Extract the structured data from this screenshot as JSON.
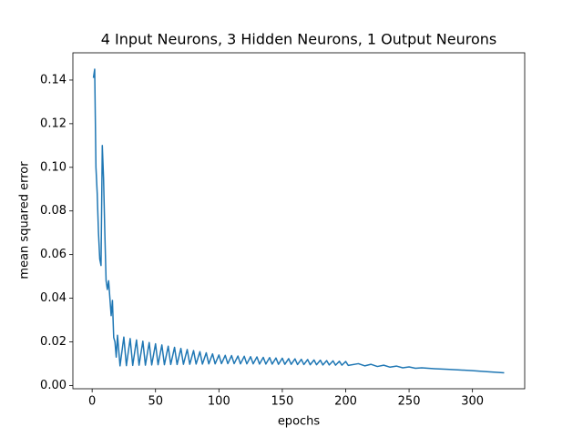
{
  "chart_data": {
    "type": "line",
    "title": "4 Input Neurons, 3 Hidden Neurons, 1 Output Neurons",
    "x_label": "epochs",
    "y_label": "mean squared error",
    "color": "#1f77b4",
    "x": [
      1,
      2,
      3,
      4,
      5,
      6,
      7,
      8,
      9,
      10,
      11,
      12,
      13,
      14,
      15,
      16,
      17,
      18,
      19,
      20,
      22,
      25,
      27,
      30,
      32,
      35,
      37,
      40,
      42,
      45,
      47,
      50,
      52,
      55,
      57,
      60,
      62,
      65,
      67,
      70,
      72,
      75,
      77,
      80,
      82,
      85,
      87,
      90,
      92,
      95,
      97,
      100,
      102,
      105,
      107,
      110,
      112,
      115,
      117,
      120,
      122,
      125,
      127,
      130,
      132,
      135,
      137,
      140,
      142,
      145,
      147,
      150,
      152,
      155,
      157,
      160,
      162,
      165,
      167,
      170,
      172,
      175,
      177,
      180,
      182,
      185,
      187,
      190,
      192,
      195,
      197,
      200,
      202,
      210,
      215,
      220,
      225,
      230,
      235,
      240,
      245,
      250,
      255,
      260,
      270,
      280,
      290,
      300,
      310,
      325
    ],
    "values": [
      0.141,
      0.145,
      0.1,
      0.088,
      0.07,
      0.058,
      0.055,
      0.11,
      0.095,
      0.07,
      0.048,
      0.044,
      0.048,
      0.04,
      0.032,
      0.039,
      0.022,
      0.02,
      0.013,
      0.023,
      0.009,
      0.0222,
      0.0091,
      0.0215,
      0.0092,
      0.0209,
      0.0093,
      0.0203,
      0.0093,
      0.0197,
      0.0094,
      0.0191,
      0.0095,
      0.0186,
      0.0095,
      0.018,
      0.0096,
      0.0175,
      0.0096,
      0.017,
      0.0097,
      0.0165,
      0.0097,
      0.016,
      0.0098,
      0.0155,
      0.0098,
      0.015,
      0.0099,
      0.0145,
      0.0099,
      0.014,
      0.01,
      0.0138,
      0.01,
      0.0137,
      0.01,
      0.0135,
      0.0099,
      0.0134,
      0.0099,
      0.0132,
      0.0099,
      0.0131,
      0.0098,
      0.0129,
      0.0098,
      0.0128,
      0.0098,
      0.0126,
      0.0097,
      0.0125,
      0.0097,
      0.0123,
      0.0097,
      0.0122,
      0.0096,
      0.012,
      0.0096,
      0.0119,
      0.0095,
      0.0117,
      0.0095,
      0.0116,
      0.0094,
      0.0114,
      0.0094,
      0.0113,
      0.0093,
      0.0111,
      0.0093,
      0.011,
      0.0092,
      0.01,
      0.009,
      0.0097,
      0.0087,
      0.0093,
      0.0084,
      0.0089,
      0.0081,
      0.0085,
      0.0079,
      0.0081,
      0.0077,
      0.0074,
      0.0071,
      0.0068,
      0.0064,
      0.0058
    ],
    "xlim": [
      -15.2,
      341.2
    ],
    "ylim": [
      -0.0015,
      0.1525
    ],
    "xticks": [
      0,
      50,
      100,
      150,
      200,
      250,
      300
    ],
    "yticks": [
      {
        "value": 0,
        "label": "0.00"
      },
      {
        "value": 0.02,
        "label": "0.02"
      },
      {
        "value": 0.04,
        "label": "0.04"
      },
      {
        "value": 0.06,
        "label": "0.06"
      },
      {
        "value": 0.08,
        "label": "0.08"
      },
      {
        "value": 0.1,
        "label": "0.10"
      },
      {
        "value": 0.12,
        "label": "0.12"
      },
      {
        "value": 0.14,
        "label": "0.14"
      }
    ],
    "grid": false
  }
}
